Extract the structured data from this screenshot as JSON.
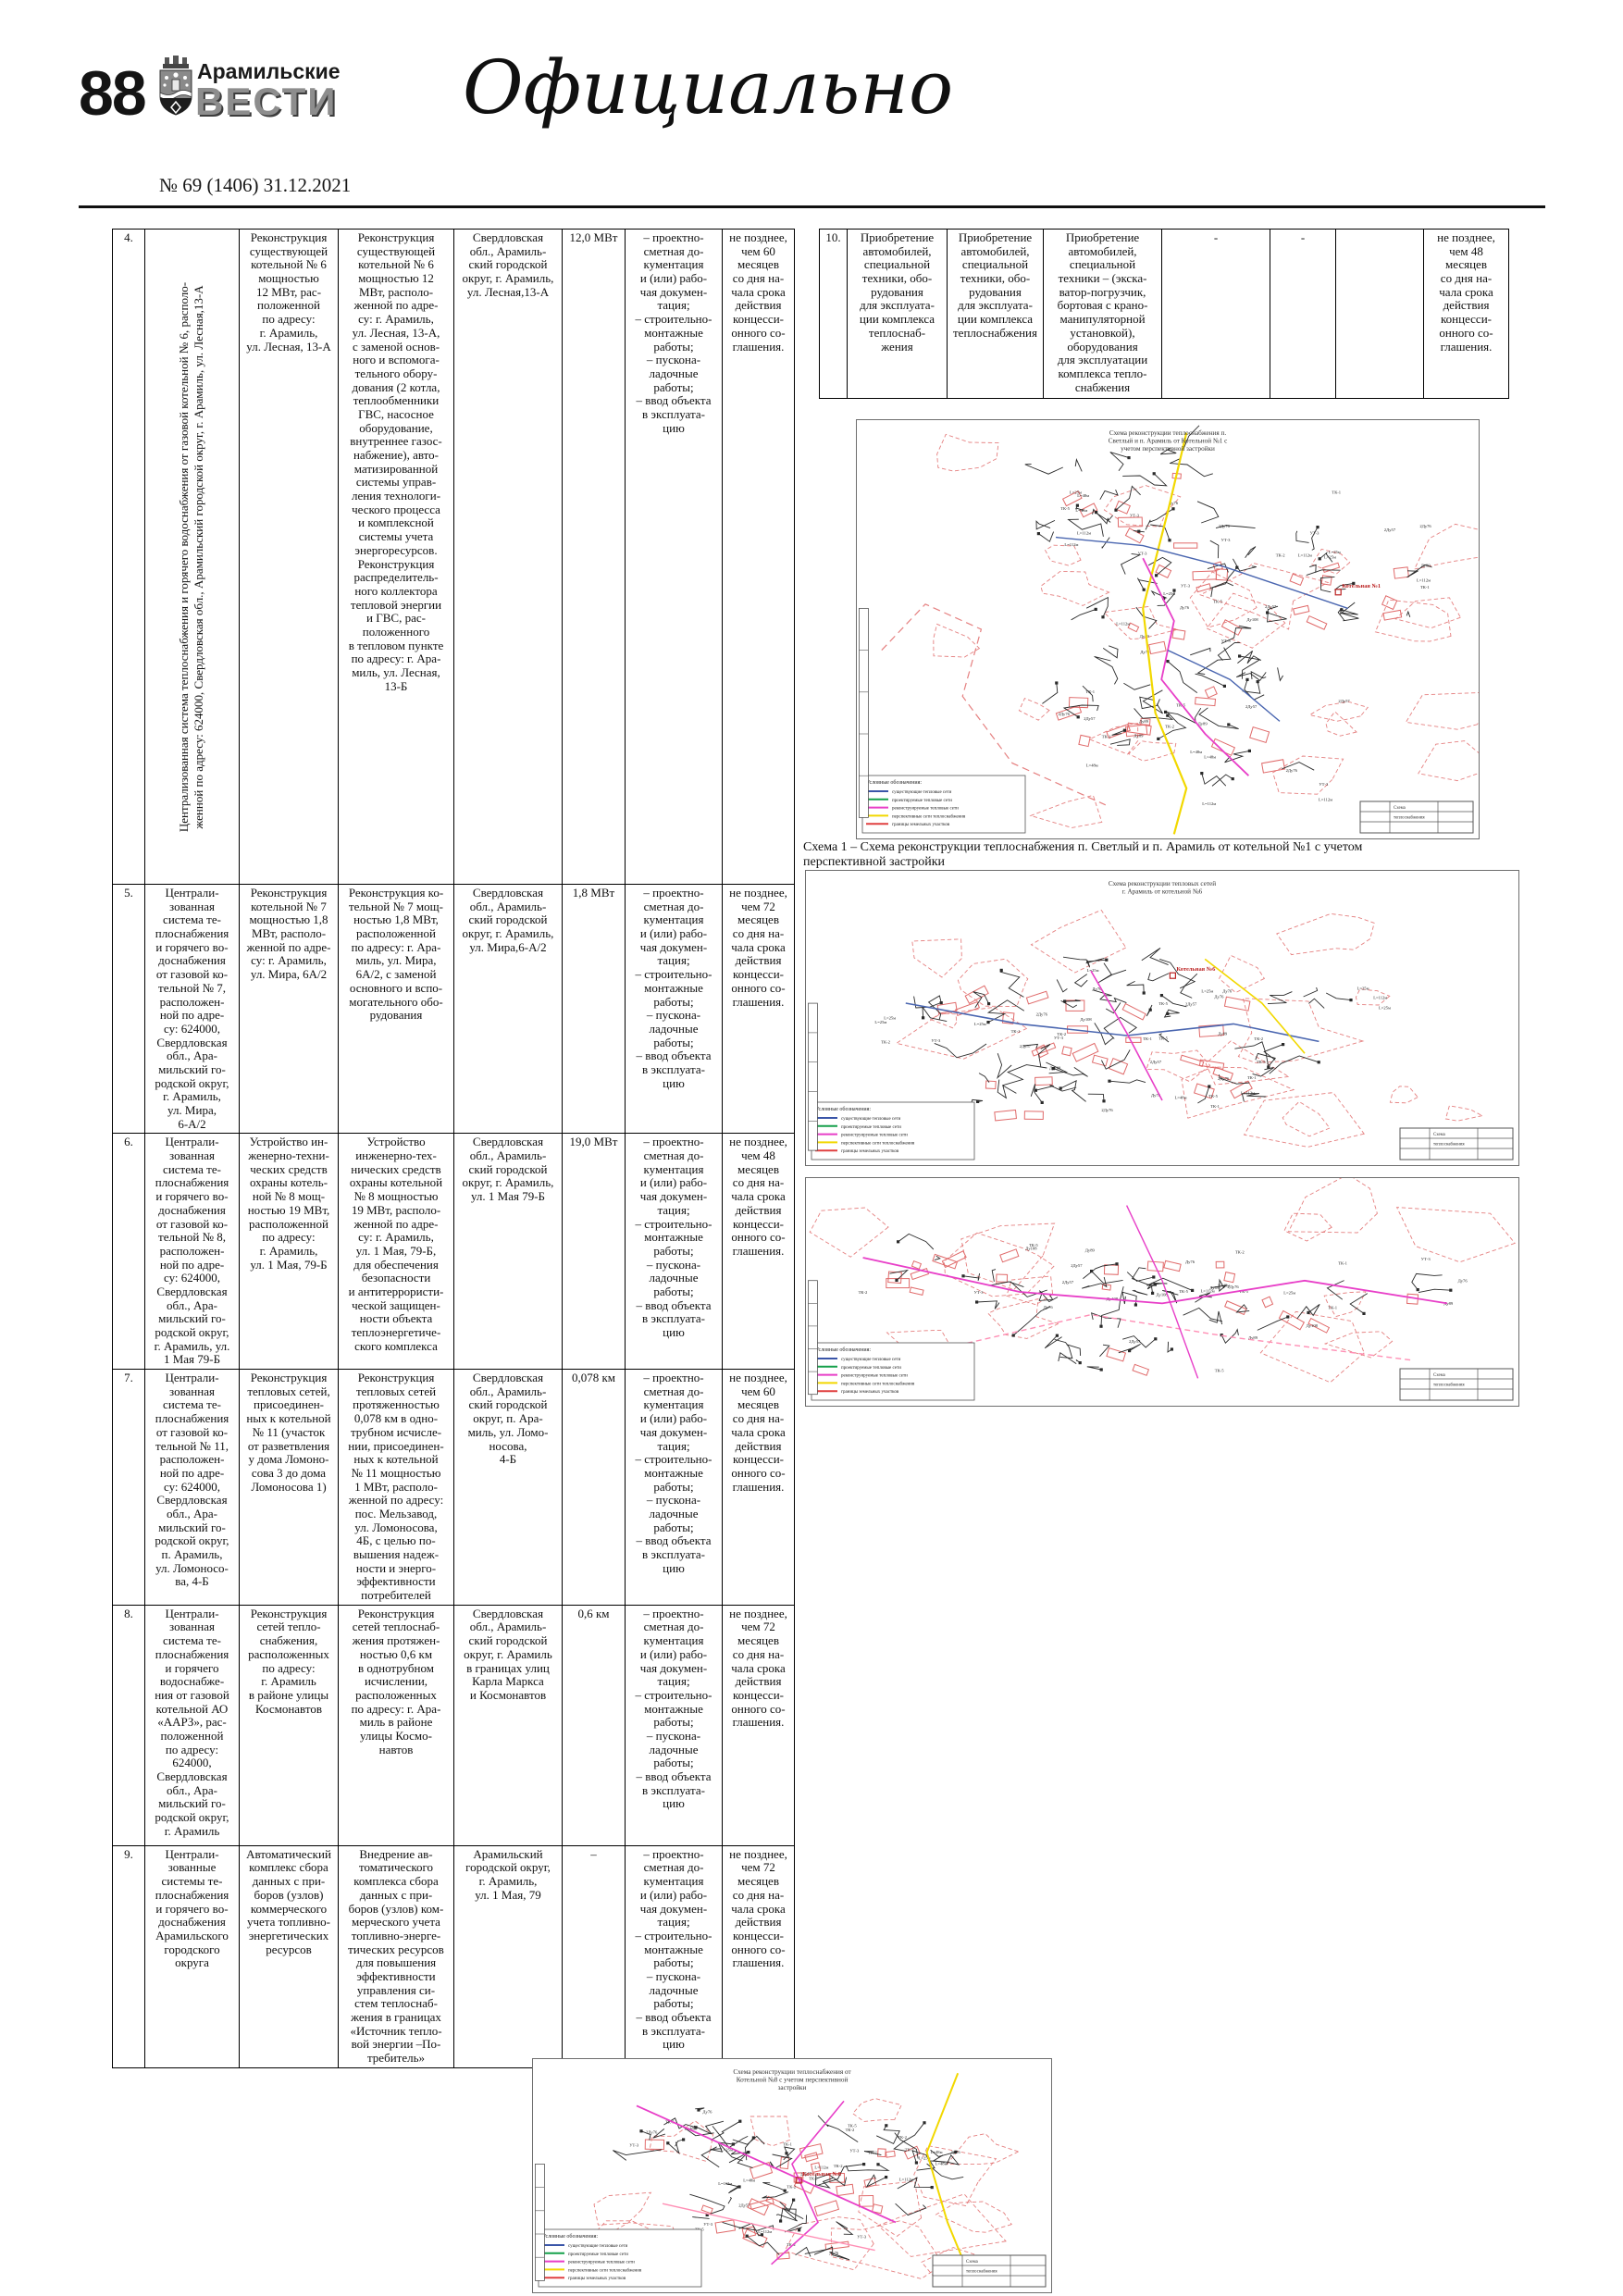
{
  "header": {
    "page_number": "88",
    "paper_name_top": "Арамильские",
    "paper_name_main": "ВЕСТИ",
    "issue": "№ 69 (1406) 31.12.2021",
    "section_title": "Официально"
  },
  "left_table": {
    "rows": [
      {
        "num": "4.",
        "system_line1": "Централизованная система теплоснабжения и горячего водоснабжения от газовой котельной № 6, располо-",
        "system_line2": "женной по адресу: 624000, Свердловская обл., Арамильский городской округ, г. Арамиль, ул. Лесная,13-А",
        "event": "Реконструкция\nсуществующей\nкотельной № 6\nмощностью\n12 МВт, рас-\nположенной\nпо адресу:\nг. Арамиль,\nул. Лесная, 13-А",
        "description": "Реконструкция\nсуществующей\nкотельной № 6\nмощностью 12\nМВт, располо-\nженной по адре-\nсу: г. Арамиль,\nул. Лесная, 13-А,\nс заменой основ-\nного и вспомога-\nтельного обору-\nдования (2 котла,\nтеплообменники\nГВС, насосное\nоборудование,\nвнутреннее газос-\nнабжение), авто-\nматизированной\nсистемы управ-\nления технологи-\nческого процесса\nи комплексной\nсистемы учета\nэнергоресурсов.\nРеконструкция\nраспределитель-\nного коллектора\nтепловой энергии\nи ГВС, рас-\nположенного\nв тепловом пункте\nпо адресу: г. Ара-\nмиль, ул. Лесная,\n13-Б",
        "location": "Свердловская\nобл., Арамиль-\nский городской\nокруг, г. Арамиль,\nул. Лесная,13-А",
        "capacity": "12,0 МВт",
        "works": "– проектно-\nсметная до-\nкументация\nи (или) рабо-\nчая докумен-\nтация;\n– строительно-\nмонтажные\nработы;\n– пускона-\nладочные\nработы;\n– ввод объекта\nв эксплуата-\nцию",
        "deadline": "не позднее,\nчем 60\nмесяцев\nсо дня на-\nчала срока\nдействия\nконцесси-\nонного со-\nглашения."
      },
      {
        "num": "5.",
        "system": "Централи-\nзованная\nсистема те-\nплоснабжения\nи горячего во-\nдоснабжения\nот газовой ко-\nтельной № 7,\nрасположен-\nной по адре-\nсу: 624000,\nСвердловская\nобл., Ара-\nмильский го-\nродской округ,\nг. Арамиль,\nул. Мира,\n6-А/2",
        "event": "Реконструкция\nкотельной № 7\nмощностью 1,8\nМВт, располо-\nженной по адре-\nсу: г. Арамиль,\nул. Мира, 6А/2",
        "description": "Реконструкция ко-\nтельной № 7 мощ-\nностью 1,8 МВт,\nрасположенной\nпо адресу: г. Ара-\nмиль, ул. Мира,\n6А/2, с заменой\nосновного и вспо-\nмогательного обо-\nрудования",
        "location": "Свердловская\nобл., Арамиль-\nский городской\nокруг, г. Арамиль,\nул. Мира,6-А/2",
        "capacity": "1,8 МВт",
        "works": "– проектно-\nсметная до-\nкументация\nи (или) рабо-\nчая докумен-\nтация;\n– строительно-\nмонтажные\nработы;\n– пускона-\nладочные\nработы;\n– ввод объекта\nв эксплуата-\nцию",
        "deadline": "не позднее,\nчем 72\nмесяцев\nсо дня на-\nчала срока\nдействия\nконцесси-\nонного со-\nглашения."
      },
      {
        "num": "6.",
        "system": "Централи-\nзованная\nсистема те-\nплоснабжения\nи горячего во-\nдоснабжения\nот газовой ко-\nтельной № 8,\nрасположен-\nной по адре-\nсу: 624000,\nСвердловская\nобл., Ара-\nмильский го-\nродской округ,\nг. Арамиль, ул.\n1 Мая 79-Б",
        "event": "Устройство ин-\nженерно-техни-\nческих средств\nохраны котель-\nной № 8 мощ-\nностью 19 МВт,\nрасположенной\nпо адресу:\nг. Арамиль,\nул. 1 Мая, 79-Б",
        "description": "Устройство\nинженерно-тех-\nнических средств\nохраны котельной\n№ 8 мощностью\n19 МВт, располо-\nженной по адре-\nсу: г. Арамиль,\nул. 1 Мая, 79-Б,\nдля обеспечения\nбезопасности\nи антитеррористи-\nческой защищен-\nности объекта\nтеплоэнергетиче-\nского комплекса",
        "location": "Свердловская\nобл., Арамиль-\nский городской\nокруг, г. Арамиль,\nул. 1 Мая 79-Б",
        "capacity": "19,0 МВт",
        "works": "– проектно-\nсметная до-\nкументация\nи (или) рабо-\nчая докумен-\nтация;\n– строительно-\nмонтажные\nработы;\n– пускона-\nладочные\nработы;\n– ввод объекта\nв эксплуата-\nцию",
        "deadline": "не позднее,\nчем 48\nмесяцев\nсо дня на-\nчала срока\nдействия\nконцесси-\nонного со-\nглашения."
      },
      {
        "num": "7.",
        "system": "Централи-\nзованная\nсистема те-\nплоснабжения\nот газовой ко-\nтельной № 11,\nрасположен-\nной по адре-\nсу: 624000,\nСвердловская\nобл., Ара-\nмильский го-\nродской округ,\nп. Арамиль,\nул. Ломоносо-\nва, 4-Б",
        "event": "Реконструкция\nтепловых сетей,\nприсоединен-\nных к котельной\n№ 11 (участок\nот разветвления\nу дома Ломоно-\nсова 3 до дома\nЛомоносова 1)",
        "description": "Реконструкция\nтепловых сетей\nпротяженностью\n0,078 км в одно-\nтрубном исчисле-\nнии, присоединен-\nных к котельной\n№ 11 мощностью\n1 МВт, располо-\nженной по адресу:\nпос. Мельзавод,\nул. Ломоносова,\n4Б, с целью по-\nвышения надеж-\nности и энерго-\nэффективности\nпотребителей",
        "location": "Свердловская\nобл., Арамиль-\nский городской\nокруг, п. Ара-\nмиль, ул. Ломо-\nносова,\n4-Б",
        "capacity": "0,078 км",
        "works": "– проектно-\nсметная до-\nкументация\nи (или) рабо-\nчая докумен-\nтация;\n– строительно-\nмонтажные\nработы;\n– пускона-\nладочные\nработы;\n– ввод объекта\nв эксплуата-\nцию",
        "deadline": "не позднее,\nчем 60\nмесяцев\nсо дня на-\nчала срока\nдействия\nконцесси-\nонного со-\nглашения."
      },
      {
        "num": "8.",
        "system": "Централи-\nзованная\nсистема те-\nплоснабжения\nи горячего\nводоснабже-\nния от газовой\nкотельной АО\n«ААРЗ», рас-\nположенной\nпо адресу:\n624000,\nСвердловская\nобл., Ара-\nмильский го-\nродской округ,\nг. Арамиль",
        "event": "Реконструкция\nсетей тепло-\nснабжения,\nрасположенных\nпо адресу:\nг. Арамиль\nв районе улицы\nКосмонавтов",
        "description": "Реконструкция\nсетей теплоснаб-\nжения протяжен-\nностью 0,6 км\nв однотрубном\nисчислении,\nрасположенных\nпо адресу: г. Ара-\nмиль в районе\nулицы Космо-\nнавтов",
        "location": "Свердловская\nобл., Арамиль-\nский городской\nокруг, г. Арамиль\nв границах улиц\nКарла Маркса\nи Космонавтов",
        "capacity": "0,6 км",
        "works": "– проектно-\nсметная до-\nкументация\nи (или) рабо-\nчая докумен-\nтация;\n– строительно-\nмонтажные\nработы;\n– пускона-\nладочные\nработы;\n– ввод объекта\nв эксплуата-\nцию",
        "deadline": "не позднее,\nчем 72\nмесяцев\nсо дня на-\nчала срока\nдействия\nконцесси-\nонного со-\nглашения."
      },
      {
        "num": "9.",
        "system": "Централи-\nзованные\nсистемы те-\nплоснабжения\nи горячего во-\nдоснабжения\nАрамильского\nгородского\nокруга",
        "event": "Автоматический\nкомплекс сбора\nданных с при-\nборов (узлов)\nкоммерческого\nучета топливно-\nэнергетических\nресурсов",
        "description": "Внедрение ав-\nтоматического\nкомплекса сбора\nданных с при-\nборов (узлов) ком-\nмерческого учета\nтопливно-энерге-\nтических ресурсов\nдля повышения\nэффективности\nуправления си-\nстем теплоснаб-\nжения в границах\n«Источник тепло-\nвой энергии –По-\nтребитель»",
        "location": "Арамильский\nгородской округ,\nг. Арамиль,\nул. 1 Мая, 79",
        "capacity": "–",
        "works": "– проектно-\nсметная до-\nкументация\nи (или) рабо-\nчая докумен-\nтация;\n– строительно-\nмонтажные\nработы;\n– пускона-\nладочные\nработы;\n– ввод объекта\nв эксплуата-\nцию",
        "deadline": "не позднее,\nчем 72\nмесяцев\nсо дня на-\nчала срока\nдействия\nконцесси-\nонного со-\nглашения."
      }
    ]
  },
  "right_table": {
    "row": {
      "num": "10.",
      "item1": "Приобретение\nавтомобилей,\nспециальной\nтехники, обо-\nрудования\nдля эксплуата-\nции комплекса\nтеплоснаб-\nжения",
      "item2": "Приобретение\nавтомобилей,\nспециальной\nтехники, обо-\nрудования\nдля эксплуата-\nции комплекса\nтеплоснабжения",
      "item3": "Приобретение\nавтомобилей,\nспециальной\nтехники – (экска-\nватор-погрузчик,\nбортовая с крано-\nманипуляторной\nустановкой),\nоборудования\nдля эксплуатации\nкомплекса тепло-\nснабжения",
      "dash1": "-",
      "dash2": "-",
      "blank": "",
      "deadline": "не позднее,\nчем 48\nмесяцев\nсо дня на-\nчала срока\nдействия\nконцесси-\nонного со-\nглашения."
    }
  },
  "caption": "Схема 1 – Схема реконструкции теплоснабжения п. Светлый и п. Арамиль от котельной №1 с учетом\nперспективной застройки",
  "map_legend": {
    "title": "Условные обозначения:",
    "items": [
      {
        "color": "#3a55a8",
        "label": "существующие тепловые сети"
      },
      {
        "color": "#15a04a",
        "label": "проектируемые тепловые сети"
      },
      {
        "color": "#e83fc8",
        "label": "реконструируемые тепловые сети"
      },
      {
        "color": "#f2d800",
        "label": "перспективные сети теплоснабжения"
      },
      {
        "color": "#e04040",
        "label": "границы земельных участков"
      }
    ]
  },
  "map_stamp": [
    "Схема",
    "теплоснабжения"
  ],
  "map_label_pool": [
    "ТК-1",
    "ТК-2",
    "ТК-5",
    "УТ-3",
    "2Ду76",
    "2Ду57",
    "Ду89",
    "Ду108",
    "L=25м",
    "L=48м",
    "L=112м",
    "Ду76"
  ],
  "schemes": [
    {
      "name": "scheme-1",
      "title": "Схема реконструкции теплоснабжения п.\nСветлый и п. Арамиль от Котельной №1 с\nучетом перспективной застройки",
      "map_labels": [
        {
          "text": "Котельная №1",
          "fx": 0.78,
          "fy": 0.4
        }
      ],
      "colors": {
        "parcel": "#e06a6a",
        "pipe": "#2a2a2a",
        "routes": [
          "#f2d800",
          "#e83fc8",
          "#4a66b0",
          "#ff8fb5"
        ]
      },
      "seed": 11
    },
    {
      "name": "scheme-2",
      "title": "Схема реконструкции тепловых сетей\nг. Арамиль от котельной №6",
      "map_labels": [
        {
          "text": "Котельная №6",
          "fx": 0.52,
          "fy": 0.34
        }
      ],
      "colors": {
        "parcel": "#e06a6a",
        "pipe": "#2a2a2a",
        "routes": [
          "#f2d800",
          "#e83fc8",
          "#4a66b0",
          "#ff8fb5"
        ]
      },
      "seed": 22
    },
    {
      "name": "scheme-3",
      "title": "",
      "map_labels": [],
      "colors": {
        "parcel": "#e06a6a",
        "pipe": "#2a2a2a",
        "routes": [
          "#f2d800",
          "#e83fc8",
          "#4a66b0",
          "#ff8fb5"
        ]
      },
      "seed": 33
    },
    {
      "name": "scheme-4",
      "title": "Схема реконструкции теплоснабжения от\nКотельной №8 с учетом перспективной\nзастройки",
      "map_labels": [
        {
          "text": "Котельная №8",
          "fx": 0.52,
          "fy": 0.5
        }
      ],
      "colors": {
        "parcel": "#e06a6a",
        "pipe": "#2a2a2a",
        "routes": [
          "#f2d800",
          "#e83fc8",
          "#4a66b0",
          "#ff8fb5"
        ]
      },
      "seed": 44
    }
  ]
}
